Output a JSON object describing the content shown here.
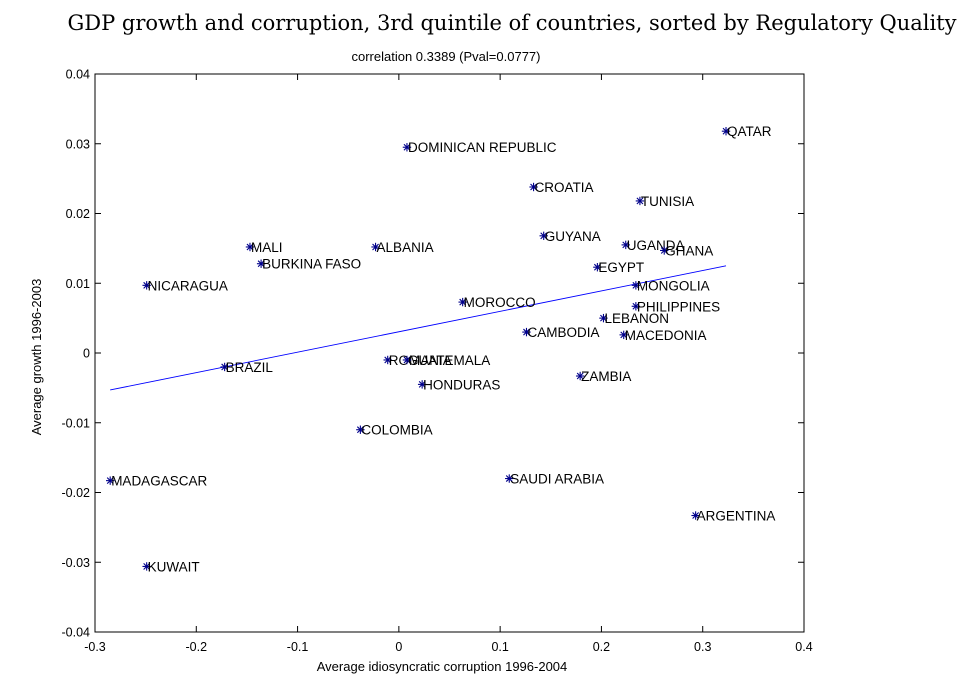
{
  "chart_data": {
    "type": "scatter",
    "title": "GDP growth and corruption, 3rd quintile of countries, sorted by Regulatory Quality",
    "subtitle": "correlation 0.3389 (Pval=0.0777)",
    "xlabel": "Average idiosyncratic corruption 1996-2004",
    "ylabel": "Average growth 1996-2003",
    "xlim": [
      -0.3,
      0.4
    ],
    "ylim": [
      -0.04,
      0.04
    ],
    "xticks": [
      -0.3,
      -0.2,
      -0.1,
      0,
      0.1,
      0.2,
      0.3,
      0.4
    ],
    "xtick_labels": [
      "-0.3",
      "-0.2",
      "-0.1",
      "0",
      "0.1",
      "0.2",
      "0.3",
      "0.4"
    ],
    "yticks": [
      -0.04,
      -0.03,
      -0.02,
      -0.01,
      0,
      0.01,
      0.02,
      0.03,
      0.04
    ],
    "ytick_labels": [
      "-0.04",
      "-0.03",
      "-0.02",
      "-0.01",
      "0",
      "0.01",
      "0.02",
      "0.03",
      "0.04"
    ],
    "grid": false,
    "marker_color": "#00008b",
    "fit_line_color": "#0000ff",
    "points": [
      {
        "label": "QATAR",
        "x": 0.323,
        "y": 0.0318
      },
      {
        "label": "DOMINICAN REPUBLIC",
        "x": 0.008,
        "y": 0.0295
      },
      {
        "label": "CROATIA",
        "x": 0.133,
        "y": 0.0238
      },
      {
        "label": "TUNISIA",
        "x": 0.238,
        "y": 0.0218
      },
      {
        "label": "GUYANA",
        "x": 0.143,
        "y": 0.0168
      },
      {
        "label": "UGANDA",
        "x": 0.224,
        "y": 0.0155
      },
      {
        "label": "GHANA",
        "x": 0.262,
        "y": 0.0147
      },
      {
        "label": "MALI",
        "x": -0.147,
        "y": 0.0152
      },
      {
        "label": "ALBANIA",
        "x": -0.023,
        "y": 0.0152
      },
      {
        "label": "BURKINA FASO",
        "x": -0.136,
        "y": 0.0128
      },
      {
        "label": "EGYPT",
        "x": 0.196,
        "y": 0.0123
      },
      {
        "label": "NICARAGUA",
        "x": -0.249,
        "y": 0.0097
      },
      {
        "label": "MONGOLIA",
        "x": 0.234,
        "y": 0.0097
      },
      {
        "label": "MOROCCO",
        "x": 0.063,
        "y": 0.0073
      },
      {
        "label": "PHILIPPINES",
        "x": 0.234,
        "y": 0.0067
      },
      {
        "label": "LEBANON",
        "x": 0.202,
        "y": 0.005
      },
      {
        "label": "CAMBODIA",
        "x": 0.126,
        "y": 0.003
      },
      {
        "label": "MACEDONIA",
        "x": 0.222,
        "y": 0.0026
      },
      {
        "label": "ROMANIA",
        "x": -0.011,
        "y": -0.001
      },
      {
        "label": "GUATEMALA",
        "x": 0.008,
        "y": -0.001
      },
      {
        "label": "BRAZIL",
        "x": -0.172,
        "y": -0.002
      },
      {
        "label": "ZAMBIA",
        "x": 0.179,
        "y": -0.0033
      },
      {
        "label": "HONDURAS",
        "x": 0.023,
        "y": -0.0045
      },
      {
        "label": "COLOMBIA",
        "x": -0.038,
        "y": -0.011
      },
      {
        "label": "SAUDI ARABIA",
        "x": 0.109,
        "y": -0.018
      },
      {
        "label": "MADAGASCAR",
        "x": -0.285,
        "y": -0.0183
      },
      {
        "label": "ARGENTINA",
        "x": 0.293,
        "y": -0.0233
      },
      {
        "label": "KUWAIT",
        "x": -0.249,
        "y": -0.0306
      }
    ],
    "fit_line": {
      "x": [
        -0.285,
        0.323
      ],
      "y": [
        -0.0053,
        0.0125
      ]
    }
  }
}
